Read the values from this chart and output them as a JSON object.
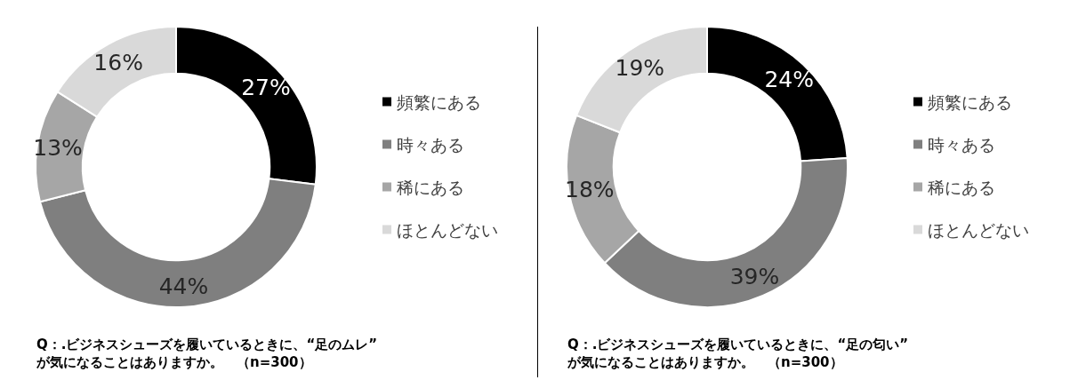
{
  "chart_data": [
    {
      "type": "donut",
      "title": "Q：.ビジネスシューズを履いているときに、“足のムレ”が気になることはありますか。　（n=300）",
      "categories": [
        "頻繁にある",
        "時々ある",
        "稀にある",
        "ほとんどない"
      ],
      "values": [
        27,
        44,
        13,
        16
      ],
      "value_labels": [
        "27%",
        "44%",
        "13%",
        "16%"
      ],
      "colors": [
        "#000000",
        "#7f7f7f",
        "#a6a6a6",
        "#d9d9d9"
      ],
      "legend": "right"
    },
    {
      "type": "donut",
      "title": "Q：.ビジネスシューズを履いているときに、“足の匂い”が気になることはありますか。　（n=300）",
      "categories": [
        "頻繁にある",
        "時々ある",
        "稀にある",
        "ほとんどない"
      ],
      "values": [
        24,
        39,
        18,
        19
      ],
      "value_labels": [
        "24%",
        "39%",
        "18%",
        "19%"
      ],
      "colors": [
        "#000000",
        "#7f7f7f",
        "#a6a6a6",
        "#d9d9d9"
      ],
      "legend": "right"
    }
  ]
}
